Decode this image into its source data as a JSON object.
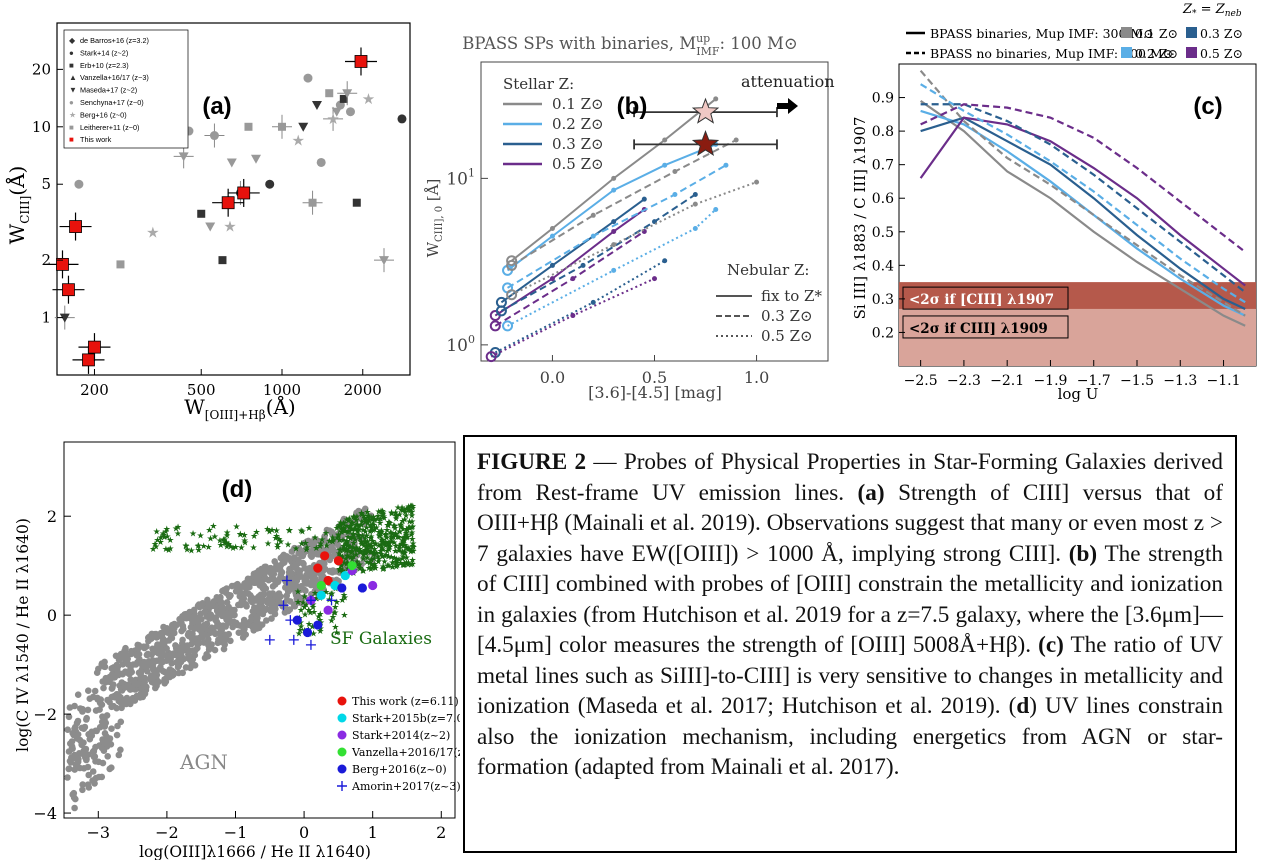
{
  "colors": {
    "red_marker": "#e8120c",
    "gray": "#888888",
    "sf_green": "#1a6b12",
    "agn_gray": "#8c8c8c",
    "blue1": "#5aaee6",
    "blue2": "#2a5f8f",
    "purple": "#6b2d8a",
    "band_dark": "#b5594b",
    "band_light": "#d9a49a"
  },
  "chart_data": [
    {
      "panel": "(a)",
      "type": "scatter",
      "xlabel": "W[OIII]+Hβ(Å)",
      "ylabel": "WCIII](Å)",
      "xscale": "log",
      "yscale": "log",
      "xlim": [
        145,
        3000
      ],
      "ylim": [
        0.5,
        35
      ],
      "xticks": [
        "200",
        "500",
        "1000",
        "2000"
      ],
      "yticks": [
        "1",
        "2",
        "5",
        "10",
        "20"
      ],
      "legend_placement": "top-left",
      "legend": [
        "de Barros+16 (z=3.2)",
        "Stark+14 (z~2)",
        "Erb+10 (z=2.3)",
        "Vanzella+16/17 (z~3)",
        "Maseda+17 (z~2)",
        "Senchyna+17 (z~0)",
        "Berg+16 (z~0)",
        "Leitherer+11 (z~0)",
        "This work"
      ],
      "this_work": [
        [
          152,
          1.9
        ],
        [
          160,
          1.4
        ],
        [
          170,
          3.0
        ],
        [
          190,
          0.6
        ],
        [
          200,
          0.7
        ],
        [
          630,
          4.0
        ],
        [
          720,
          4.5
        ],
        [
          1970,
          22
        ]
      ],
      "literature": [
        [
          155,
          1.0
        ],
        [
          175,
          5.0
        ],
        [
          250,
          1.9
        ],
        [
          330,
          2.8
        ],
        [
          430,
          7.0
        ],
        [
          450,
          9.5
        ],
        [
          500,
          3.5
        ],
        [
          540,
          3.0
        ],
        [
          560,
          9.0
        ],
        [
          600,
          2.0
        ],
        [
          640,
          3.0
        ],
        [
          650,
          6.5
        ],
        [
          700,
          4.5
        ],
        [
          750,
          10
        ],
        [
          800,
          6.8
        ],
        [
          900,
          5.0
        ],
        [
          1000,
          10
        ],
        [
          1150,
          8.5
        ],
        [
          1200,
          10
        ],
        [
          1250,
          18
        ],
        [
          1300,
          4.0
        ],
        [
          1350,
          13
        ],
        [
          1400,
          6.5
        ],
        [
          1500,
          15
        ],
        [
          1550,
          11
        ],
        [
          1600,
          12
        ],
        [
          1650,
          13
        ],
        [
          1700,
          14
        ],
        [
          1750,
          15
        ],
        [
          1800,
          12
        ],
        [
          1900,
          4.0
        ],
        [
          2100,
          14
        ],
        [
          2400,
          2.0
        ],
        [
          2800,
          11
        ]
      ]
    },
    {
      "panel": "(b)",
      "type": "line",
      "title": "BPASS SPs with binaries, Mup IMF: 100 M⊙",
      "xlabel": "[3.6]-[4.5] [mag]",
      "ylabel": "WCIII],0 [Å]",
      "xlim": [
        -0.35,
        1.35
      ],
      "ylim": [
        0.8,
        50
      ],
      "yscale": "log",
      "xticks": [
        "0.0",
        "0.5",
        "1.0"
      ],
      "yticks": [
        "10^0",
        "10^1"
      ],
      "annotation": "attenuation",
      "legend_stellar_title": "Stellar Z:",
      "legend_stellar": [
        "0.1 Z⊙",
        "0.2 Z⊙",
        "0.3 Z⊙",
        "0.5 Z⊙"
      ],
      "legend_nebular_title": "Nebular Z:",
      "legend_nebular": [
        "fix to Z*",
        "0.3 Z⊙",
        "0.5 Z⊙"
      ],
      "series": [
        {
          "style": "solid",
          "color": "gray",
          "x": [
            -0.2,
            0.0,
            0.3,
            0.55,
            0.8
          ],
          "y": [
            3.2,
            5.0,
            10,
            17,
            30
          ]
        },
        {
          "style": "solid",
          "color": "blue1",
          "x": [
            -0.22,
            0.0,
            0.3,
            0.55,
            0.8
          ],
          "y": [
            2.8,
            4.5,
            8.5,
            12,
            16
          ]
        },
        {
          "style": "solid",
          "color": "blue2",
          "x": [
            -0.25,
            0.0,
            0.3,
            0.45
          ],
          "y": [
            1.8,
            3.0,
            5.5,
            7.5
          ]
        },
        {
          "style": "solid",
          "color": "purple",
          "x": [
            -0.28,
            0.0,
            0.3,
            0.45
          ],
          "y": [
            1.5,
            2.5,
            4.8,
            6.5
          ]
        },
        {
          "style": "dashed",
          "color": "gray",
          "x": [
            -0.2,
            0.2,
            0.6,
            0.9
          ],
          "y": [
            3.0,
            6.0,
            11,
            17
          ]
        },
        {
          "style": "dashed",
          "color": "blue1",
          "x": [
            -0.22,
            0.2,
            0.6,
            0.85
          ],
          "y": [
            2.2,
            4.5,
            8.0,
            12
          ]
        },
        {
          "style": "dashed",
          "color": "blue2",
          "x": [
            -0.25,
            0.15,
            0.5,
            0.7
          ],
          "y": [
            1.6,
            3.0,
            5.5,
            8.0
          ]
        },
        {
          "style": "dashed",
          "color": "purple",
          "x": [
            -0.28,
            0.1,
            0.45
          ],
          "y": [
            1.3,
            2.5,
            4.8
          ]
        },
        {
          "style": "dotted",
          "color": "gray",
          "x": [
            -0.2,
            0.3,
            0.7,
            1.0
          ],
          "y": [
            2.0,
            4.0,
            7.0,
            9.5
          ]
        },
        {
          "style": "dotted",
          "color": "blue1",
          "x": [
            -0.22,
            0.3,
            0.7,
            0.8
          ],
          "y": [
            1.3,
            2.8,
            5.0,
            6.5
          ]
        },
        {
          "style": "dotted",
          "color": "blue2",
          "x": [
            -0.28,
            0.2,
            0.55
          ],
          "y": [
            0.9,
            1.8,
            3.2
          ]
        },
        {
          "style": "dotted",
          "color": "purple",
          "x": [
            -0.3,
            0.1,
            0.5
          ],
          "y": [
            0.85,
            1.5,
            2.5
          ]
        }
      ],
      "stars": [
        {
          "x": 0.75,
          "y": 25,
          "xerr": 0.35,
          "color": "pink"
        },
        {
          "x": 0.75,
          "y": 16,
          "xerr": 0.35,
          "color": "darkred"
        }
      ]
    },
    {
      "panel": "(c)",
      "type": "line",
      "xlabel": "log U",
      "ylabel": "Si III] λ1883 / C III] λ1907",
      "xlim": [
        -2.6,
        -0.95
      ],
      "ylim": [
        0.1,
        1.0
      ],
      "xticks": [
        "−2.5",
        "−2.3",
        "−2.1",
        "−1.9",
        "−1.7",
        "−1.5",
        "−1.3",
        "−1.1"
      ],
      "yticks": [
        "0.2",
        "0.3",
        "0.4",
        "0.5",
        "0.6",
        "0.7",
        "0.8",
        "0.9"
      ],
      "legend_header": "Z* = Zneb",
      "legend_lines": [
        "BPASS binaries, Mup IMF: 300 M⊙",
        "BPASS no binaries, Mup IMF: 100 M⊙"
      ],
      "legend_colors": [
        "0.1 Z⊙",
        "0.3 Z⊙",
        "0.2 Z⊙",
        "0.5 Z⊙"
      ],
      "bands": [
        {
          "label": "<2σ if [CIII] λ1907",
          "y": [
            0.27,
            0.35
          ]
        },
        {
          "label": "<2σ if CIII] λ1909",
          "y": [
            0.1,
            0.27
          ]
        }
      ],
      "x": [
        -2.5,
        -2.3,
        -2.1,
        -1.9,
        -1.7,
        -1.5,
        -1.3,
        -1.1,
        -1.0
      ],
      "series": [
        {
          "style": "solid",
          "color": "gray",
          "y": [
            0.89,
            0.8,
            0.68,
            0.6,
            0.5,
            0.41,
            0.33,
            0.25,
            0.22
          ]
        },
        {
          "style": "solid",
          "color": "blue1",
          "y": [
            0.86,
            0.82,
            0.74,
            0.65,
            0.55,
            0.45,
            0.36,
            0.28,
            0.25
          ]
        },
        {
          "style": "solid",
          "color": "blue2",
          "y": [
            0.8,
            0.84,
            0.77,
            0.7,
            0.6,
            0.49,
            0.39,
            0.3,
            0.27
          ]
        },
        {
          "style": "solid",
          "color": "purple",
          "y": [
            0.66,
            0.84,
            0.82,
            0.77,
            0.69,
            0.6,
            0.49,
            0.39,
            0.34
          ]
        },
        {
          "style": "dashed",
          "color": "gray",
          "y": [
            0.98,
            0.83,
            0.72,
            0.64,
            0.55,
            0.46,
            0.37,
            0.29,
            0.25
          ]
        },
        {
          "style": "dashed",
          "color": "blue1",
          "y": [
            0.94,
            0.86,
            0.79,
            0.71,
            0.62,
            0.52,
            0.42,
            0.33,
            0.29
          ]
        },
        {
          "style": "dashed",
          "color": "blue2",
          "y": [
            0.88,
            0.88,
            0.83,
            0.76,
            0.67,
            0.57,
            0.47,
            0.37,
            0.32
          ]
        },
        {
          "style": "dashed",
          "color": "purple",
          "y": [
            0.82,
            0.88,
            0.87,
            0.84,
            0.78,
            0.69,
            0.59,
            0.49,
            0.44
          ]
        }
      ]
    },
    {
      "panel": "(d)",
      "type": "scatter",
      "xlabel": "log(OIII]λ1666 / He II λ1640)",
      "ylabel": "log(C IV λ1540 / He II λ1640)",
      "xlim": [
        -3.5,
        2.2
      ],
      "ylim": [
        -4.1,
        3.5
      ],
      "xticks": [
        "−3",
        "−2",
        "−1",
        "0",
        "1",
        "2"
      ],
      "yticks": [
        "−4",
        "−2",
        "0",
        "2"
      ],
      "region_labels": [
        "AGN",
        "SF Galaxies"
      ],
      "legend": [
        "This work (z=6.11)",
        "Stark+2015b(z=7.045)",
        "Stark+2014(z~2)",
        "Vanzella+2016/17(z~3)",
        "Berg+2016(z~0)",
        "Amorin+2017(z~3)"
      ],
      "legend_colors": [
        "#e8120c",
        "#00d8e8",
        "#8a2be2",
        "#33e033",
        "#1a1ad8",
        "#1a1ad8"
      ]
    }
  ],
  "caption": {
    "figure_label": "FIGURE 2",
    "intro": " — Probes of Physical Properties in Star-Forming Galaxies derived from Rest-frame UV emission lines. ",
    "a_label": "(a)",
    "a_text": " Strength of CIII] versus that of OIII+Hβ (Mainali et al. 2019). Observations suggest that many or even most z > 7 galaxies have EW([OIII]) > 1000 Å, implying strong CIII]. ",
    "b_label": "(b)",
    "b_text": " The strength of CIII] combined with probes of [OIII] constrain the metallicity and ionization in galaxies (from Hutchison et al. 2019 for a z=7.5 galaxy, where the [3.6μm]—[4.5μm] color measures the strength of [OIII] 5008Å+Hβ). ",
    "c_label": "(c)",
    "c_text": " The ratio of UV metal lines such as SiIII]-to-CIII] is very sensitive to changes in metallicity and ionization (Maseda et al. 2017; Hutchison et al. 2019). (",
    "d_label": "d",
    "d_text": ") UV lines constrain also the ionization mechanism, including energetics from AGN or star-formation (adapted from Mainali et al. 2017)."
  }
}
